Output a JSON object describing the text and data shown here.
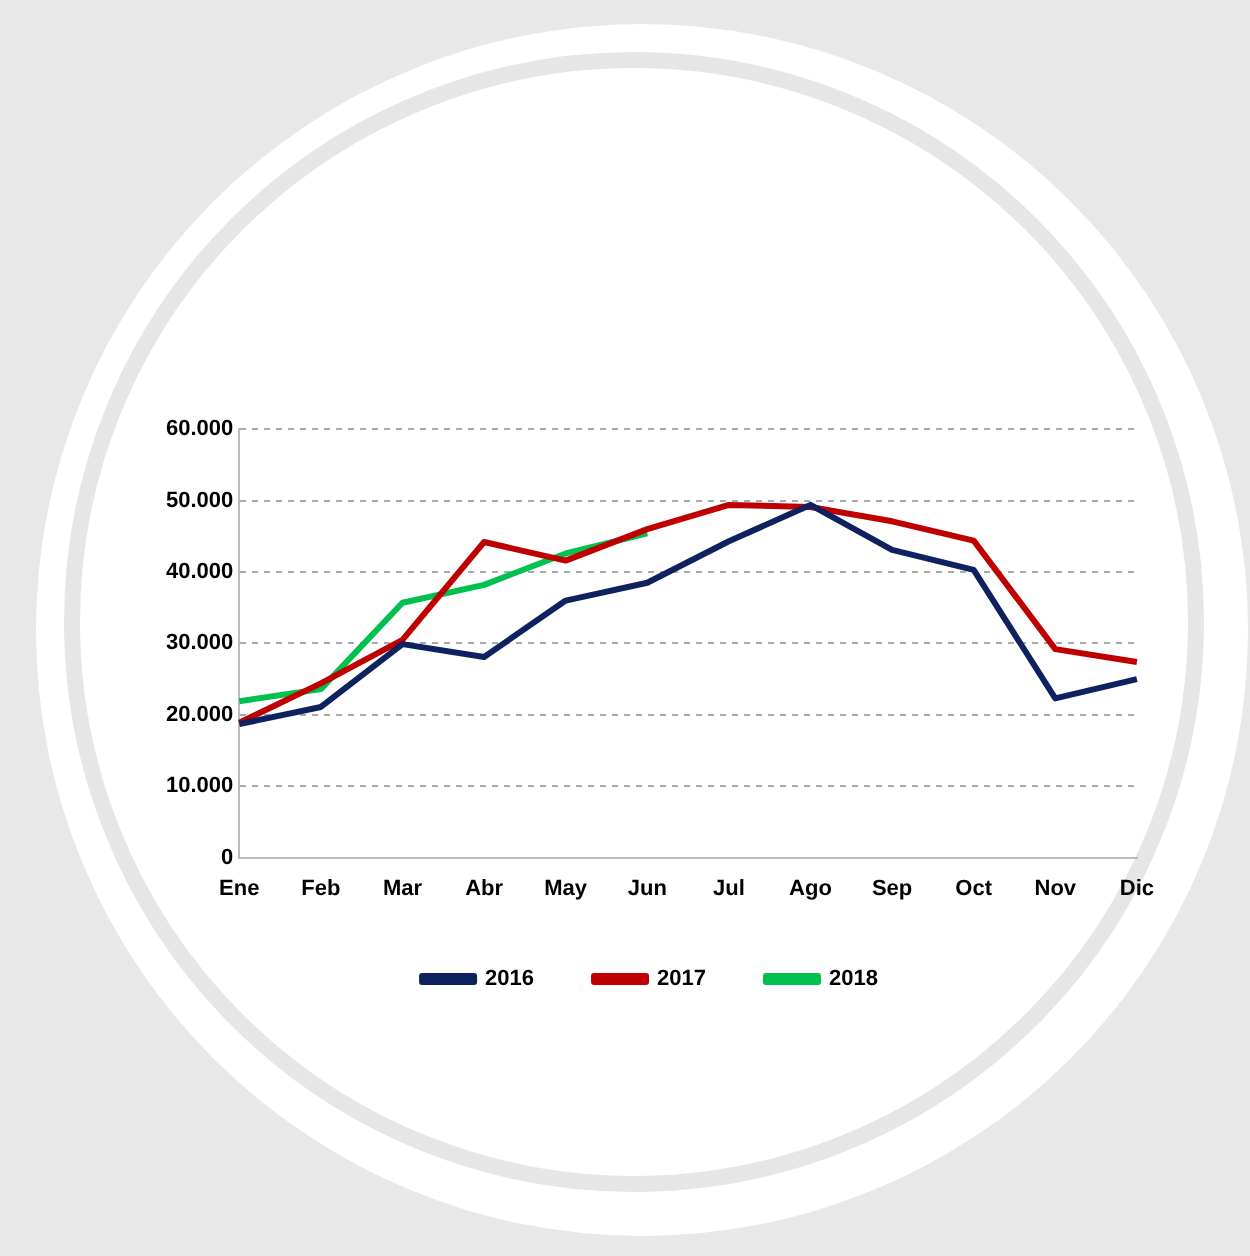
{
  "chart_data": {
    "type": "line",
    "categories": [
      "Ene",
      "Feb",
      "Mar",
      "Abr",
      "May",
      "Jun",
      "Jul",
      "Ago",
      "Sep",
      "Oct",
      "Nov",
      "Dic"
    ],
    "series": [
      {
        "name": "2016",
        "color": "#0e2260",
        "values": [
          18700,
          21100,
          29900,
          28100,
          36000,
          38500,
          44300,
          49400,
          43100,
          40300,
          22300,
          25000
        ]
      },
      {
        "name": "2017",
        "color": "#c00000",
        "values": [
          18900,
          24400,
          30500,
          44200,
          41600,
          46000,
          49400,
          49100,
          47100,
          44400,
          29200,
          27400
        ]
      },
      {
        "name": "2018",
        "color": "#00c050",
        "values": [
          21900,
          23600,
          35700,
          38200,
          42600,
          45400,
          null,
          null,
          null,
          null,
          null,
          null
        ]
      }
    ],
    "ylim": [
      0,
      60000
    ],
    "yticks": [
      {
        "value": 0,
        "label": "0"
      },
      {
        "value": 10000,
        "label": "10.000"
      },
      {
        "value": 20000,
        "label": "20.000"
      },
      {
        "value": 30000,
        "label": "30.000"
      },
      {
        "value": 40000,
        "label": "40.000"
      },
      {
        "value": 50000,
        "label": "50.000"
      },
      {
        "value": 60000,
        "label": "60.000"
      }
    ],
    "grid": "y",
    "legend": "bottom",
    "marker": "none",
    "line_style": "solid"
  }
}
